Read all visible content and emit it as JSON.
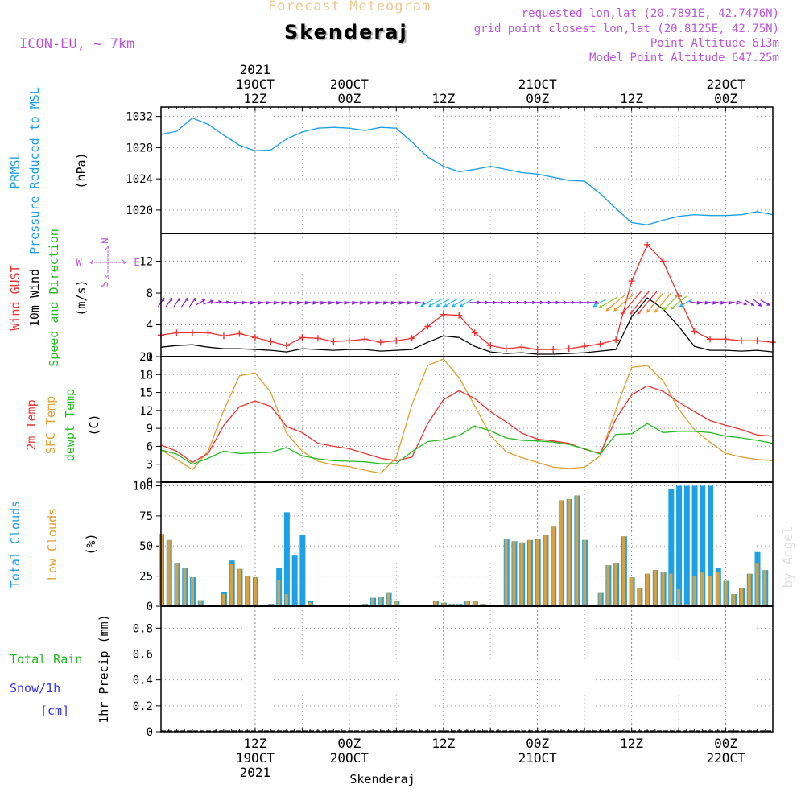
{
  "header": {
    "forecast_label": "Forecast Meteogram",
    "location": "Skenderaj",
    "model": "ICON-EU, ~ 7km",
    "requested": "requested lon,lat (20.7891E, 42.7476N)",
    "grid_point": "grid point closest lon,lat (20.8125E, 42.75N)",
    "point_altitude": "Point Altitude 613m",
    "model_altitude": "Model Point Altitude 647.25m",
    "footer_location": "Skenderaj",
    "credit": "by Angel"
  },
  "time_axis": {
    "start_hour": 0,
    "end_hour": 78,
    "top_labels": [
      {
        "hour": 12,
        "lines": [
          "2021",
          "19OCT",
          "12Z"
        ]
      },
      {
        "hour": 24,
        "lines": [
          "20OCT",
          "00Z"
        ]
      },
      {
        "hour": 36,
        "lines": [
          "12Z"
        ]
      },
      {
        "hour": 48,
        "lines": [
          "21OCT",
          "00Z"
        ]
      },
      {
        "hour": 60,
        "lines": [
          "12Z"
        ]
      },
      {
        "hour": 72,
        "lines": [
          "22OCT",
          "00Z"
        ]
      }
    ],
    "bottom_labels": [
      {
        "hour": 12,
        "lines": [
          "12Z",
          "19OCT",
          "2021"
        ]
      },
      {
        "hour": 24,
        "lines": [
          "00Z",
          "20OCT"
        ]
      },
      {
        "hour": 36,
        "lines": [
          "12Z"
        ]
      },
      {
        "hour": 48,
        "lines": [
          "00Z",
          "21OCT"
        ]
      },
      {
        "hour": 60,
        "lines": [
          "12Z"
        ]
      },
      {
        "hour": 72,
        "lines": [
          "00Z",
          "22OCT"
        ]
      }
    ]
  },
  "colors": {
    "pressure": "#1ea0e6",
    "gust": "#ee3333",
    "wind": "#000000",
    "direction": "#22bb22",
    "temp2m": "#ee3333",
    "sfc_temp": "#e0a030",
    "dewpt": "#22bb22",
    "total_clouds": "#1ea0e6",
    "low_clouds": "#d8a040",
    "total_rain": "#22bb22",
    "snow": "#3333ee",
    "wind_arrows": "#8822cc",
    "model_text": "#bb55dd"
  },
  "panels": {
    "pressure": {
      "labels": [
        "PRMSL",
        "Pressure Reduced to MSL"
      ],
      "unit": "(hPa)",
      "ticks": [
        "1020",
        "1024",
        "1028",
        "1032"
      ]
    },
    "wind": {
      "labels": [
        "Wind GUST",
        "10m Wind",
        "Speed and Direction"
      ],
      "unit": "(m/s)",
      "ticks": [
        "0",
        "4",
        "8",
        "12"
      ],
      "compass": [
        "N",
        "W",
        "E",
        "S"
      ]
    },
    "temp": {
      "labels": [
        "2m Temp",
        "SFC Temp",
        "dewpt Temp"
      ],
      "unit": "(C)",
      "ticks": [
        "0",
        "3",
        "6",
        "9",
        "12",
        "15",
        "18",
        "21"
      ]
    },
    "clouds": {
      "labels": [
        "Total Clouds",
        "Low Clouds"
      ],
      "unit": "(%)",
      "ticks": [
        "0",
        "25",
        "50",
        "75",
        "100"
      ]
    },
    "precip": {
      "labels": [
        "Total Rain",
        "Snow/1h",
        "[cm]"
      ],
      "unit": "1hr Precip (mm)",
      "ticks": [
        "0",
        "0.2",
        "0.4",
        "0.6",
        "0.8"
      ]
    }
  },
  "chart_data": [
    {
      "type": "line",
      "title": "PRMSL Pressure Reduced to MSL",
      "ylabel": "(hPa)",
      "ylim": [
        1017,
        1033.2
      ],
      "x": [
        0,
        2,
        4,
        6,
        8,
        10,
        12,
        14,
        16,
        18,
        20,
        22,
        24,
        26,
        28,
        30,
        32,
        34,
        36,
        38,
        40,
        42,
        44,
        46,
        48,
        50,
        52,
        54,
        56,
        58,
        60,
        62,
        64,
        66,
        68,
        70,
        72,
        74,
        76,
        78
      ],
      "series": [
        {
          "name": "PRMSL",
          "values": [
            1029.7,
            1030.1,
            1031.8,
            1031.0,
            1029.6,
            1028.3,
            1027.6,
            1027.7,
            1029.1,
            1030.0,
            1030.5,
            1030.6,
            1030.5,
            1030.2,
            1030.6,
            1030.5,
            1028.7,
            1026.8,
            1025.6,
            1024.9,
            1025.2,
            1025.6,
            1025.2,
            1024.8,
            1024.6,
            1024.2,
            1023.8,
            1023.7,
            1022.1,
            1020.2,
            1018.4,
            1018.1,
            1018.7,
            1019.2,
            1019.4,
            1019.3,
            1019.3,
            1019.4,
            1019.8,
            1019.4
          ]
        }
      ]
    },
    {
      "type": "line",
      "title": "Wind GUST, 10m Wind Speed and Direction",
      "ylabel": "(m/s)",
      "ylim": [
        0,
        15.5
      ],
      "x": [
        0,
        2,
        4,
        6,
        8,
        10,
        12,
        14,
        16,
        18,
        20,
        22,
        24,
        26,
        28,
        30,
        32,
        34,
        36,
        38,
        40,
        42,
        44,
        46,
        48,
        50,
        52,
        54,
        56,
        58,
        60,
        62,
        64,
        66,
        68,
        70,
        72,
        74,
        76,
        78
      ],
      "series": [
        {
          "name": "Wind GUST",
          "values": [
            2.7,
            3.0,
            3.0,
            3.0,
            2.6,
            2.9,
            2.4,
            1.9,
            1.4,
            2.4,
            2.3,
            1.9,
            2.0,
            2.2,
            1.8,
            2.0,
            2.3,
            3.8,
            5.3,
            5.2,
            3.0,
            1.4,
            1.0,
            1.2,
            0.9,
            0.9,
            1.0,
            1.3,
            1.6,
            2.1,
            9.5,
            14.1,
            12.0,
            7.6,
            3.2,
            2.2,
            2.2,
            2.0,
            2.0,
            1.8
          ]
        },
        {
          "name": "10m Wind",
          "values": [
            1.2,
            1.4,
            1.5,
            1.2,
            1.0,
            1.0,
            0.9,
            0.8,
            0.6,
            1.0,
            0.9,
            0.8,
            0.9,
            0.9,
            0.7,
            0.8,
            0.9,
            1.8,
            2.6,
            2.4,
            1.3,
            0.6,
            0.4,
            0.5,
            0.3,
            0.3,
            0.4,
            0.5,
            0.7,
            0.9,
            5.0,
            7.4,
            6.0,
            3.8,
            1.3,
            0.8,
            0.8,
            0.7,
            0.8,
            0.6
          ]
        }
      ]
    },
    {
      "type": "line",
      "title": "2m Temp, SFC Temp, dewpt Temp",
      "ylabel": "(C)",
      "ylim": [
        0,
        21
      ],
      "x": [
        0,
        2,
        4,
        6,
        8,
        10,
        12,
        14,
        16,
        18,
        20,
        22,
        24,
        26,
        28,
        30,
        32,
        34,
        36,
        38,
        40,
        42,
        44,
        46,
        48,
        50,
        52,
        54,
        56,
        58,
        60,
        62,
        64,
        66,
        68,
        70,
        72,
        74,
        76,
        78
      ],
      "series": [
        {
          "name": "2m Temp",
          "values": [
            6.2,
            5.2,
            3.3,
            4.8,
            9.5,
            12.6,
            13.6,
            12.7,
            9.3,
            8.3,
            6.5,
            6.0,
            5.6,
            4.8,
            4.0,
            3.6,
            4.2,
            9.8,
            13.8,
            15.3,
            14.0,
            11.8,
            10.1,
            8.2,
            7.2,
            6.9,
            6.5,
            5.5,
            4.8,
            10.6,
            14.6,
            16.1,
            15.2,
            13.4,
            11.8,
            10.3,
            9.5,
            8.8,
            7.9,
            7.7
          ]
        },
        {
          "name": "SFC Temp",
          "values": [
            5.4,
            3.8,
            2.1,
            5.2,
            12.0,
            17.8,
            18.3,
            15.0,
            8.2,
            5.2,
            3.5,
            2.9,
            2.6,
            2.0,
            1.5,
            4.1,
            13.0,
            19.5,
            20.6,
            17.5,
            12.8,
            7.8,
            5.1,
            4.1,
            3.3,
            2.5,
            2.3,
            2.5,
            4.4,
            12.2,
            19.2,
            19.5,
            17.0,
            12.2,
            8.8,
            6.7,
            4.8,
            4.2,
            3.8,
            3.6
          ]
        },
        {
          "name": "dewpt Temp",
          "values": [
            5.4,
            4.7,
            3.0,
            4.0,
            5.2,
            4.8,
            4.9,
            5.0,
            5.8,
            4.4,
            3.9,
            3.6,
            3.5,
            3.4,
            3.1,
            3.1,
            5.1,
            6.8,
            7.1,
            7.8,
            9.4,
            8.6,
            7.4,
            7.0,
            6.9,
            6.7,
            6.3,
            5.6,
            4.7,
            8.0,
            8.1,
            9.8,
            8.3,
            8.5,
            8.5,
            8.3,
            7.7,
            7.4,
            7.0,
            6.5
          ]
        }
      ]
    },
    {
      "type": "bar",
      "title": "Total Clouds, Low Clouds",
      "ylabel": "(%)",
      "ylim": [
        0,
        103
      ],
      "x": [
        0,
        1,
        2,
        3,
        4,
        5,
        6,
        7,
        8,
        9,
        10,
        11,
        12,
        13,
        14,
        15,
        16,
        17,
        18,
        19,
        20,
        21,
        22,
        23,
        24,
        25,
        26,
        27,
        28,
        29,
        30,
        31,
        32,
        33,
        34,
        35,
        36,
        37,
        38,
        39,
        40,
        41,
        42,
        43,
        44,
        45,
        46,
        47,
        48,
        49,
        50,
        51,
        52,
        53,
        54,
        55,
        56,
        57,
        58,
        59,
        60,
        61,
        62,
        63,
        64,
        65,
        66,
        67,
        68,
        69,
        70,
        71,
        72,
        73,
        74,
        75,
        76,
        77
      ],
      "series": [
        {
          "name": "Total Clouds",
          "values": [
            60,
            55,
            36,
            32,
            24,
            5,
            0,
            0,
            12,
            38,
            31,
            25,
            24,
            0,
            2,
            32,
            78,
            42,
            59,
            4,
            1,
            0,
            0,
            0,
            0,
            1,
            2,
            7,
            8,
            11,
            4,
            0,
            0,
            0,
            1,
            4,
            3,
            2,
            2,
            4,
            4,
            2,
            0,
            0,
            56,
            54,
            53,
            55,
            56,
            59,
            66,
            88,
            89,
            92,
            55,
            0,
            11,
            34,
            36,
            58,
            24,
            15,
            27,
            30,
            28,
            97,
            100,
            100,
            100,
            100,
            100,
            32,
            21,
            10,
            15,
            27,
            45,
            30
          ]
        },
        {
          "name": "Low Clouds",
          "values": [
            60,
            55,
            36,
            32,
            24,
            5,
            0,
            0,
            10,
            35,
            31,
            25,
            24,
            0,
            2,
            22,
            10,
            0,
            0,
            3,
            1,
            0,
            0,
            0,
            0,
            1,
            2,
            7,
            8,
            11,
            4,
            0,
            0,
            0,
            1,
            4,
            3,
            2,
            2,
            4,
            4,
            2,
            0,
            0,
            56,
            54,
            53,
            55,
            56,
            59,
            66,
            88,
            89,
            92,
            55,
            0,
            11,
            34,
            36,
            58,
            24,
            15,
            27,
            30,
            28,
            27,
            14,
            2,
            25,
            28,
            25,
            28,
            21,
            10,
            15,
            27,
            36,
            30
          ]
        }
      ]
    },
    {
      "type": "bar",
      "title": "Total Rain, Snow/1h",
      "ylabel": "1hr Precip (mm)",
      "ylim": [
        0,
        0.97
      ],
      "series": [
        {
          "name": "Total Rain",
          "values": []
        },
        {
          "name": "Snow/1h",
          "values": []
        }
      ]
    }
  ],
  "wind_direction": {
    "hours": [
      0,
      1,
      2,
      3,
      4,
      5,
      6,
      7,
      8,
      9,
      10,
      11,
      12,
      13,
      14,
      15,
      16,
      17,
      18,
      19,
      20,
      21,
      22,
      23,
      24,
      25,
      26,
      27,
      28,
      29,
      30,
      31,
      32,
      33,
      34,
      35,
      36,
      37,
      38,
      39,
      40,
      41,
      42,
      43,
      44,
      45,
      46,
      47,
      48,
      49,
      50,
      51,
      52,
      53,
      54,
      55,
      56,
      57,
      58,
      59,
      60,
      61,
      62,
      63,
      64,
      65,
      66,
      67,
      68,
      69,
      70,
      71,
      72,
      73,
      74,
      75,
      76,
      77
    ],
    "direction_deg": [
      35,
      35,
      35,
      35,
      35,
      60,
      70,
      80,
      85,
      95,
      95,
      100,
      100,
      100,
      100,
      100,
      100,
      100,
      100,
      100,
      100,
      100,
      100,
      100,
      100,
      100,
      100,
      100,
      100,
      100,
      100,
      100,
      100,
      100,
      240,
      240,
      240,
      240,
      240,
      240,
      90,
      90,
      90,
      90,
      90,
      90,
      90,
      90,
      90,
      90,
      90,
      90,
      90,
      90,
      90,
      90,
      240,
      240,
      230,
      230,
      220,
      220,
      220,
      220,
      220,
      225,
      230,
      240,
      100,
      100,
      100,
      100,
      100,
      100,
      110,
      120,
      130,
      120
    ],
    "speed_class": [
      1,
      1,
      1,
      1,
      1,
      1,
      1,
      1,
      1,
      1,
      1,
      1,
      1,
      1,
      1,
      1,
      1,
      1,
      1,
      1,
      1,
      1,
      1,
      1,
      1,
      1,
      1,
      1,
      1,
      1,
      1,
      1,
      1,
      1,
      2,
      2,
      2,
      2,
      2,
      2,
      1,
      1,
      1,
      1,
      1,
      1,
      1,
      1,
      1,
      1,
      1,
      1,
      1,
      1,
      1,
      1,
      2,
      3,
      4,
      4,
      5,
      5,
      5,
      4,
      4,
      3,
      3,
      2,
      1,
      1,
      1,
      1,
      1,
      1,
      1,
      1,
      1,
      1
    ]
  }
}
